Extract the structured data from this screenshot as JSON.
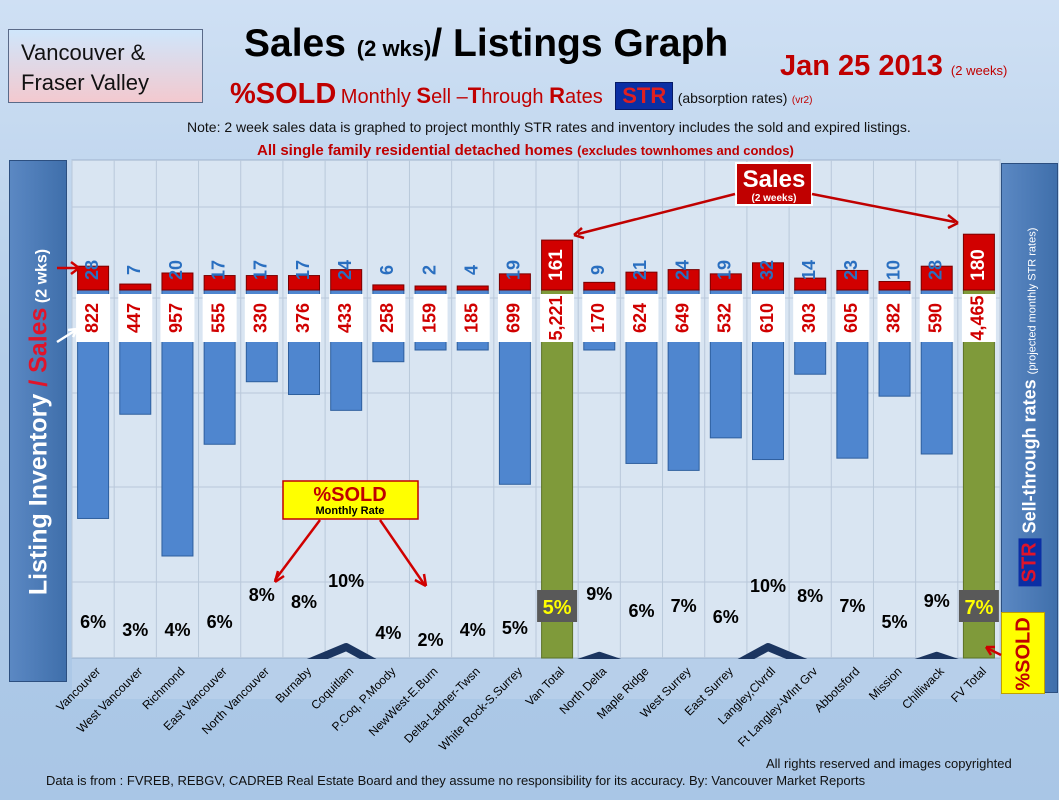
{
  "header": {
    "region_line1": "Vancouver &",
    "region_line2": "Fraser Valley",
    "title_a": "Sales ",
    "title_b": "(2 wks)",
    "title_c": "/ Listings Graph",
    "date": "Jan 25 2013",
    "date_note": "(2 weeks)",
    "pct_sold": "%SOLD",
    "sub_a": "Monthly ",
    "sub_S": "S",
    "sub_b": "ell –",
    "sub_T": "T",
    "sub_c": "hrough ",
    "sub_R": "R",
    "sub_d": "ates",
    "str": "STR",
    "absorption": "(absorption rates)",
    "vr": "(vr2)",
    "note": "Note: 2 week sales data is graphed to project monthly STR rates and inventory includes the sold and expired listings.",
    "note2_a": "All single family residential detached homes ",
    "note2_b": "(excludes townhomes and condos)"
  },
  "axis": {
    "left_a": "Listing Inventory ",
    "left_b": "/ Sales",
    "left_c": " (2 wks)",
    "right_str": "STR",
    "right_a": " Sell-through rates ",
    "right_b": "(projected monthly STR rates)",
    "right_sold": "%SOLD"
  },
  "callouts": {
    "sales_title": "Sales",
    "sales_sub": "(2 weeks)",
    "sold_title": "%SOLD",
    "sold_sub": "Monthly Rate"
  },
  "footer": {
    "rights": "All rights reserved and  images copyrighted",
    "source": "Data is  from : FVREB, REBGV, CADREB Real Estate Board and they assume no responsibility  for its accuracy. By: Vancouver Market Reports"
  },
  "colors": {
    "inventory_bar": "#4f86cf",
    "total_bar": "#7f9a3a",
    "sales_bar": "#d10000",
    "line": "#1b3560",
    "label_red": "#d00000",
    "label_blue": "#2a6fc0"
  },
  "chart_data": {
    "type": "bar",
    "categories": [
      "Vancouver",
      "West Vancouver",
      "Richmond",
      "East Vancouver",
      "North Vancouver",
      "Burnaby",
      "Coquitlam",
      "P.Coq, P.Moody",
      "NewWest-E.Burn",
      "Delta-Ladner-Twsn",
      "White Rock-S.Surrey",
      "Van Total",
      "North Delta",
      "Maple Ridge",
      "West Surrey",
      "East Surrey",
      "Langley,Clvrdl",
      "Ft Langley-Wlnt Grv",
      "Abbotsford",
      "Mission",
      "Chilliwack",
      "FV Total"
    ],
    "series": [
      {
        "name": "Listing Inventory",
        "values": [
          822,
          447,
          957,
          555,
          330,
          376,
          433,
          258,
          159,
          185,
          699,
          5221,
          170,
          624,
          649,
          532,
          610,
          303,
          605,
          382,
          590,
          4465
        ],
        "labels": [
          "822",
          "447",
          "957",
          "555",
          "330",
          "376",
          "433",
          "258",
          "159",
          "185",
          "699",
          "5,221",
          "170",
          "624",
          "649",
          "532",
          "610",
          "303",
          "605",
          "382",
          "590",
          "4,465"
        ]
      },
      {
        "name": "Sales",
        "values": [
          28,
          7,
          20,
          17,
          17,
          17,
          24,
          6,
          2,
          4,
          19,
          161,
          9,
          21,
          24,
          19,
          32,
          14,
          23,
          10,
          28,
          180
        ],
        "labels": [
          "28",
          "7",
          "20",
          "17",
          "17",
          "17",
          "24",
          "6",
          "2",
          "4",
          "19",
          "161",
          "9",
          "21",
          "24",
          "19",
          "32",
          "14",
          "23",
          "10",
          "28",
          "180"
        ]
      },
      {
        "name": "%SOLD",
        "values": [
          6,
          3,
          4,
          6,
          8,
          8,
          10,
          4,
          2,
          4,
          5,
          5,
          9,
          6,
          7,
          6,
          10,
          8,
          7,
          5,
          9,
          7
        ],
        "labels": [
          "6%",
          "3%",
          "4%",
          "6%",
          "8%",
          "8%",
          "10%",
          "4%",
          "2%",
          "4%",
          "5%",
          "5%",
          "9%",
          "6%",
          "7%",
          "6%",
          "10%",
          "8%",
          "7%",
          "5%",
          "9%",
          "7%"
        ]
      }
    ],
    "totals": [
      "Van Total",
      "FV Total"
    ],
    "grid": true
  }
}
